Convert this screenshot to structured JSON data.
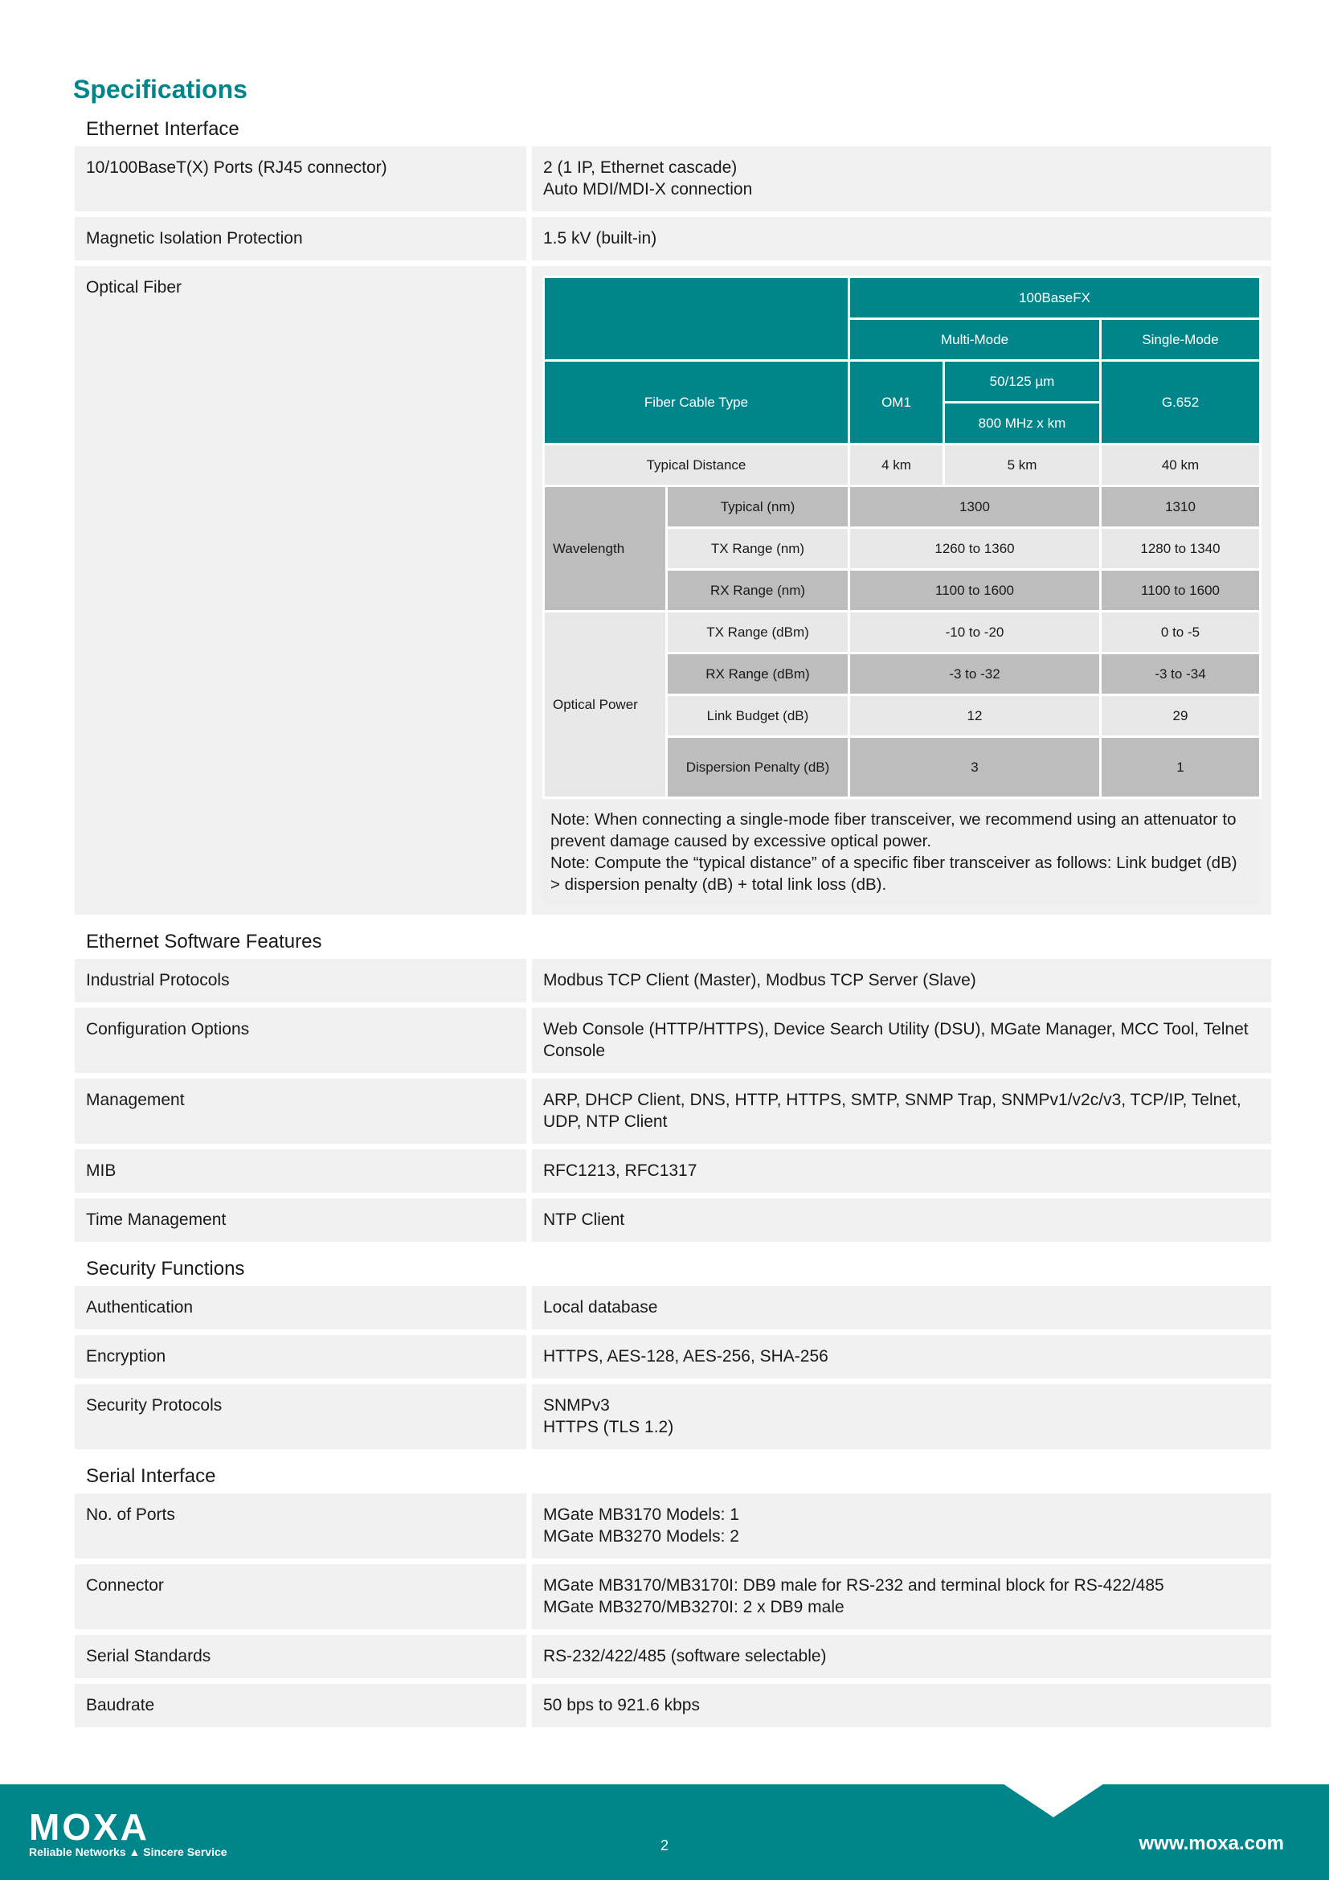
{
  "title": "Specifications",
  "sections": [
    {
      "heading": "Ethernet Interface",
      "rows": [
        {
          "k": "10/100BaseT(X) Ports (RJ45 connector)",
          "v": "2 (1 IP, Ethernet cascade)\nAuto MDI/MDI-X connection"
        },
        {
          "k": "Magnetic Isolation Protection",
          "v": "1.5 kV (built-in)"
        },
        {
          "k": "Optical Fiber"
        }
      ]
    },
    {
      "heading": "Ethernet Software Features",
      "rows": [
        {
          "k": "Industrial Protocols",
          "v": "Modbus TCP Client (Master), Modbus TCP Server (Slave)"
        },
        {
          "k": "Configuration Options",
          "v": "Web Console (HTTP/HTTPS), Device Search Utility (DSU), MGate Manager, MCC Tool, Telnet Console"
        },
        {
          "k": "Management",
          "v": "ARP, DHCP Client, DNS, HTTP, HTTPS, SMTP, SNMP Trap, SNMPv1/v2c/v3, TCP/IP, Telnet, UDP, NTP Client"
        },
        {
          "k": "MIB",
          "v": "RFC1213, RFC1317"
        },
        {
          "k": "Time Management",
          "v": "NTP Client"
        }
      ]
    },
    {
      "heading": "Security Functions",
      "rows": [
        {
          "k": "Authentication",
          "v": "Local database"
        },
        {
          "k": "Encryption",
          "v": "HTTPS, AES-128, AES-256, SHA-256"
        },
        {
          "k": "Security Protocols",
          "v": "SNMPv3\nHTTPS (TLS 1.2)"
        }
      ]
    },
    {
      "heading": "Serial Interface",
      "rows": [
        {
          "k": "No. of Ports",
          "v": "MGate MB3170 Models: 1\nMGate MB3270 Models: 2"
        },
        {
          "k": "Connector",
          "v": "MGate MB3170/MB3170I: DB9 male for RS-232 and terminal block for RS-422/485\nMGate MB3270/MB3270I: 2 x DB9 male"
        },
        {
          "k": "Serial Standards",
          "v": "RS-232/422/485 (software selectable)"
        },
        {
          "k": "Baudrate",
          "v": "50 bps to 921.6 kbps"
        }
      ]
    }
  ],
  "fiber": {
    "h100": "100BaseFX",
    "multi": "Multi-Mode",
    "single": "Single-Mode",
    "cable": "Fiber Cable Type",
    "om1": "OM1",
    "um": "50/125 µm",
    "mhz": "800 MHz x km",
    "g652": "G.652",
    "dist": "Typical Distance",
    "d1": "4 km",
    "d2": "5 km",
    "d3": "40 km",
    "wl": "Wavelength",
    "op": "Optical Power",
    "rows": [
      {
        "k": "Typical (nm)",
        "m": "1300",
        "s": "1310"
      },
      {
        "k": "TX Range (nm)",
        "m": "1260 to 1360",
        "s": "1280 to 1340"
      },
      {
        "k": "RX Range (nm)",
        "m": "1100 to 1600",
        "s": "1100 to 1600"
      },
      {
        "k": "TX Range (dBm)",
        "m": "-10 to -20",
        "s": "0 to -5"
      },
      {
        "k": "RX Range (dBm)",
        "m": "-3 to -32",
        "s": "-3 to -34"
      },
      {
        "k": "Link Budget (dB)",
        "m": "12",
        "s": "29"
      },
      {
        "k": "Dispersion Penalty (dB)",
        "m": "3",
        "s": "1"
      }
    ],
    "note1": "Note: When connecting a single-mode fiber transceiver, we recommend using an attenuator to prevent damage caused by excessive optical power.",
    "note2": "Note: Compute the “typical distance” of a specific fiber transceiver as follows: Link budget (dB) > dispersion penalty (dB) + total link loss (dB)."
  },
  "footer": {
    "logo": "MOXA",
    "tagline": "Reliable Networks ▲ Sincere Service",
    "page": "2",
    "url": "www.moxa.com"
  },
  "colors": {
    "accent": "#00868a"
  }
}
